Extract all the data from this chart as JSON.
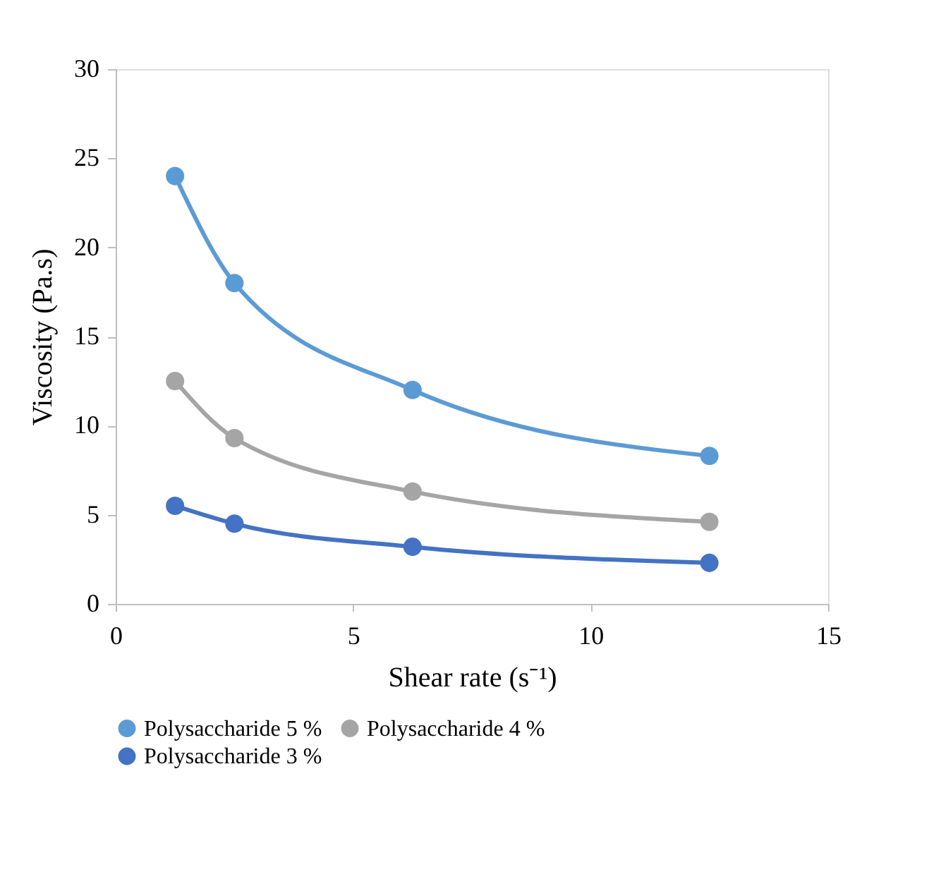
{
  "chart_data": {
    "type": "line",
    "xlabel": "Shear rate (s⁻¹)",
    "ylabel": "Viscosity (Pa.s)",
    "x": [
      1.25,
      2.5,
      6.25,
      12.5
    ],
    "series": [
      {
        "name": "Polysaccharide 5 %",
        "color": "#5b9bd5",
        "values": [
          24,
          18,
          12,
          8.3
        ]
      },
      {
        "name": "Polysaccharide 4 %",
        "color": "#a5a5a5",
        "values": [
          12.5,
          9.3,
          6.3,
          4.6
        ]
      },
      {
        "name": "Polysaccharide 3 %",
        "color": "#4472c4",
        "values": [
          5.5,
          4.5,
          3.2,
          2.3
        ]
      }
    ],
    "xlim": [
      0,
      15
    ],
    "xticks": [
      0,
      5,
      10,
      15
    ],
    "ylim": [
      0,
      30
    ],
    "yticks": [
      0,
      5,
      10,
      15,
      20,
      25,
      30
    ],
    "grid": false,
    "legend": "bottom",
    "marker": "circle",
    "line_style": "solid"
  }
}
